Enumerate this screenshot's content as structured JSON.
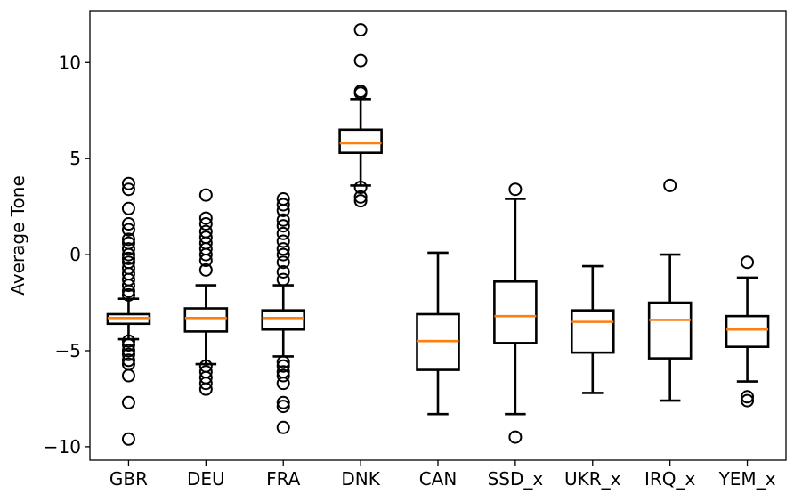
{
  "chart_data": {
    "type": "boxplot",
    "title": "",
    "xlabel": "",
    "ylabel": "Average Tone",
    "ylim": [
      -10.7,
      12.7
    ],
    "yticks": [
      -10,
      -5,
      0,
      5,
      10
    ],
    "ytick_labels": [
      "−10",
      "−5",
      "0",
      "5",
      "10"
    ],
    "grid": false,
    "colors": {
      "box": "#000000",
      "median": "#ff7f0e"
    },
    "categories": [
      "GBR",
      "DEU",
      "FRA",
      "DNK",
      "CAN",
      "SSD_x",
      "UKR_x",
      "IRQ_x",
      "YEM_x"
    ],
    "boxes": [
      {
        "label": "GBR",
        "whislo": -4.4,
        "q1": -3.6,
        "med": -3.3,
        "q3": -3.1,
        "whishi": -2.3,
        "fliers": [
          3.7,
          3.4,
          2.4,
          1.6,
          1.3,
          0.8,
          0.6,
          0.3,
          0.0,
          -0.2,
          -0.4,
          -0.7,
          -1.0,
          -1.3,
          -1.6,
          -1.9,
          -2.1,
          -4.5,
          -4.7,
          -5.0,
          -5.2,
          -5.5,
          -5.7,
          -6.3,
          -7.7,
          -9.6
        ]
      },
      {
        "label": "DEU",
        "whislo": -5.7,
        "q1": -4.0,
        "med": -3.3,
        "q3": -2.8,
        "whishi": -1.6,
        "fliers": [
          3.1,
          1.9,
          1.6,
          1.2,
          0.9,
          0.6,
          0.3,
          0.0,
          -0.3,
          -0.8,
          -5.8,
          -6.1,
          -6.4,
          -6.7,
          -7.0
        ]
      },
      {
        "label": "FRA",
        "whislo": -5.3,
        "q1": -3.9,
        "med": -3.3,
        "q3": -2.9,
        "whishi": -1.6,
        "fliers": [
          2.9,
          2.6,
          2.3,
          1.8,
          1.5,
          1.1,
          0.7,
          0.3,
          0.0,
          -0.4,
          -0.9,
          -1.3,
          -5.6,
          -5.8,
          -6.1,
          -6.3,
          -6.7,
          -7.7,
          -7.9,
          -9.0
        ]
      },
      {
        "label": "DNK",
        "whislo": 3.6,
        "q1": 5.3,
        "med": 5.8,
        "q3": 6.5,
        "whishi": 8.1,
        "fliers": [
          11.7,
          10.1,
          8.5,
          8.4,
          3.5,
          3.0,
          2.8
        ]
      },
      {
        "label": "CAN",
        "whislo": -8.3,
        "q1": -6.0,
        "med": -4.5,
        "q3": -3.1,
        "whishi": 0.1,
        "fliers": []
      },
      {
        "label": "SSD_x",
        "whislo": -8.3,
        "q1": -4.6,
        "med": -3.2,
        "q3": -1.4,
        "whishi": 2.9,
        "fliers": [
          3.4,
          -9.5
        ]
      },
      {
        "label": "UKR_x",
        "whislo": -7.2,
        "q1": -5.1,
        "med": -3.5,
        "q3": -2.9,
        "whishi": -0.6,
        "fliers": []
      },
      {
        "label": "IRQ_x",
        "whislo": -7.6,
        "q1": -5.4,
        "med": -3.4,
        "q3": -2.5,
        "whishi": 0.0,
        "fliers": [
          3.6
        ]
      },
      {
        "label": "YEM_x",
        "whislo": -6.6,
        "q1": -4.8,
        "med": -3.9,
        "q3": -3.2,
        "whishi": -1.2,
        "fliers": [
          -0.4,
          -7.4,
          -7.6
        ]
      }
    ]
  }
}
